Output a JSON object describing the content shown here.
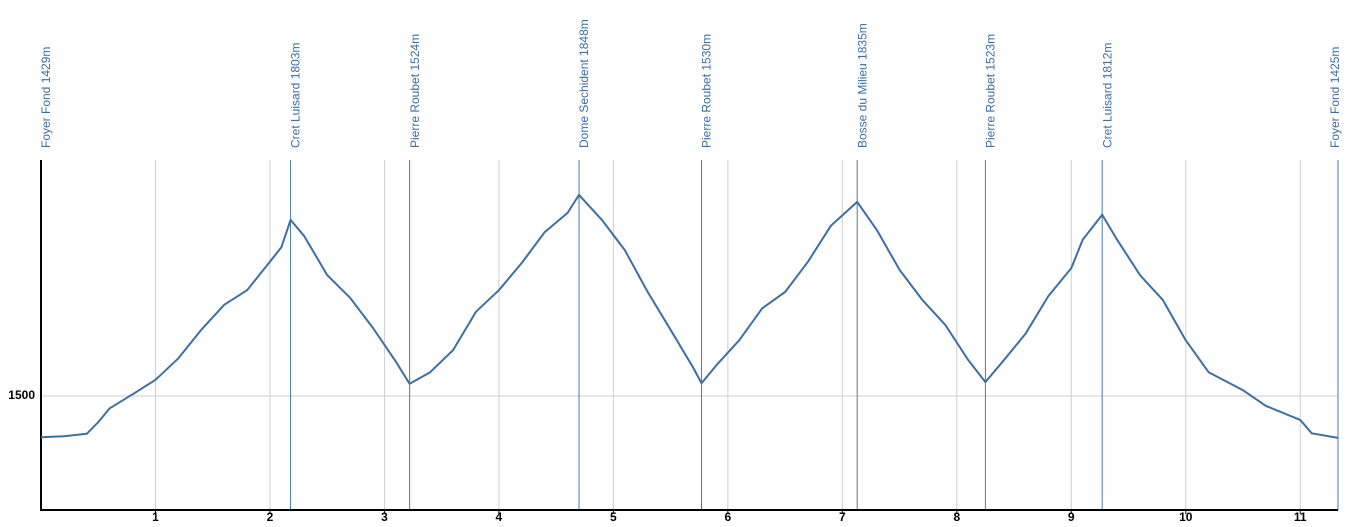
{
  "chart_data": {
    "type": "line",
    "x": [
      0,
      0.2,
      0.4,
      0.5,
      0.6,
      0.8,
      1.0,
      1.2,
      1.4,
      1.6,
      1.8,
      2.0,
      2.1,
      2.18,
      2.3,
      2.5,
      2.7,
      2.9,
      3.1,
      3.22,
      3.4,
      3.6,
      3.8,
      4.0,
      4.2,
      4.4,
      4.6,
      4.7,
      4.9,
      5.1,
      5.3,
      5.5,
      5.7,
      5.77,
      5.9,
      6.1,
      6.3,
      6.5,
      6.7,
      6.9,
      7.13,
      7.3,
      7.5,
      7.7,
      7.9,
      8.1,
      8.25,
      8.4,
      8.6,
      8.8,
      9.0,
      9.1,
      9.27,
      9.4,
      9.6,
      9.8,
      10.0,
      10.2,
      10.5,
      10.7,
      11.0,
      11.1,
      11.33
    ],
    "series": [
      {
        "color": "#3f6f9f",
        "values": [
          1429,
          1431,
          1435,
          1455,
          1479,
          1503,
          1528,
          1565,
          1614,
          1657,
          1682,
          1731,
          1756,
          1803,
          1775,
          1708,
          1669,
          1617,
          1559,
          1521,
          1541,
          1579,
          1645,
          1682,
          1729,
          1782,
          1815,
          1846,
          1803,
          1751,
          1679,
          1614,
          1548,
          1522,
          1553,
          1596,
          1651,
          1679,
          1731,
          1793,
          1834,
          1786,
          1717,
          1665,
          1622,
          1562,
          1524,
          1559,
          1607,
          1672,
          1720,
          1769,
          1812,
          1769,
          1708,
          1665,
          1596,
          1541,
          1510,
          1483,
          1459,
          1436,
          1428
        ]
      }
    ],
    "waypoints": [
      {
        "x": 0,
        "label": "Foyer Fond  1429m"
      },
      {
        "x": 2.18,
        "label": "Cret Luisard  1803m"
      },
      {
        "x": 3.22,
        "label": "Pierre Roubet  1524m"
      },
      {
        "x": 4.7,
        "label": "Dome Sechident  1848m"
      },
      {
        "x": 5.77,
        "label": "Pierre Roubet  1530m"
      },
      {
        "x": 7.13,
        "label": "Bosse du Milieu  1835m"
      },
      {
        "x": 8.25,
        "label": "Pierre Roubet  1523m"
      },
      {
        "x": 9.27,
        "label": "Cret Luisard  1812m"
      },
      {
        "x": 11.33,
        "label": "Foyer Fond  1425m"
      }
    ],
    "waypoint_color": "#4a7aa8",
    "xlim": [
      0,
      11.33
    ],
    "xticks": [
      1,
      2,
      3,
      4,
      5,
      6,
      7,
      8,
      9,
      10,
      11
    ],
    "ylim": [
      1304,
      1906
    ],
    "yticks": [
      1500
    ],
    "grid": true
  }
}
